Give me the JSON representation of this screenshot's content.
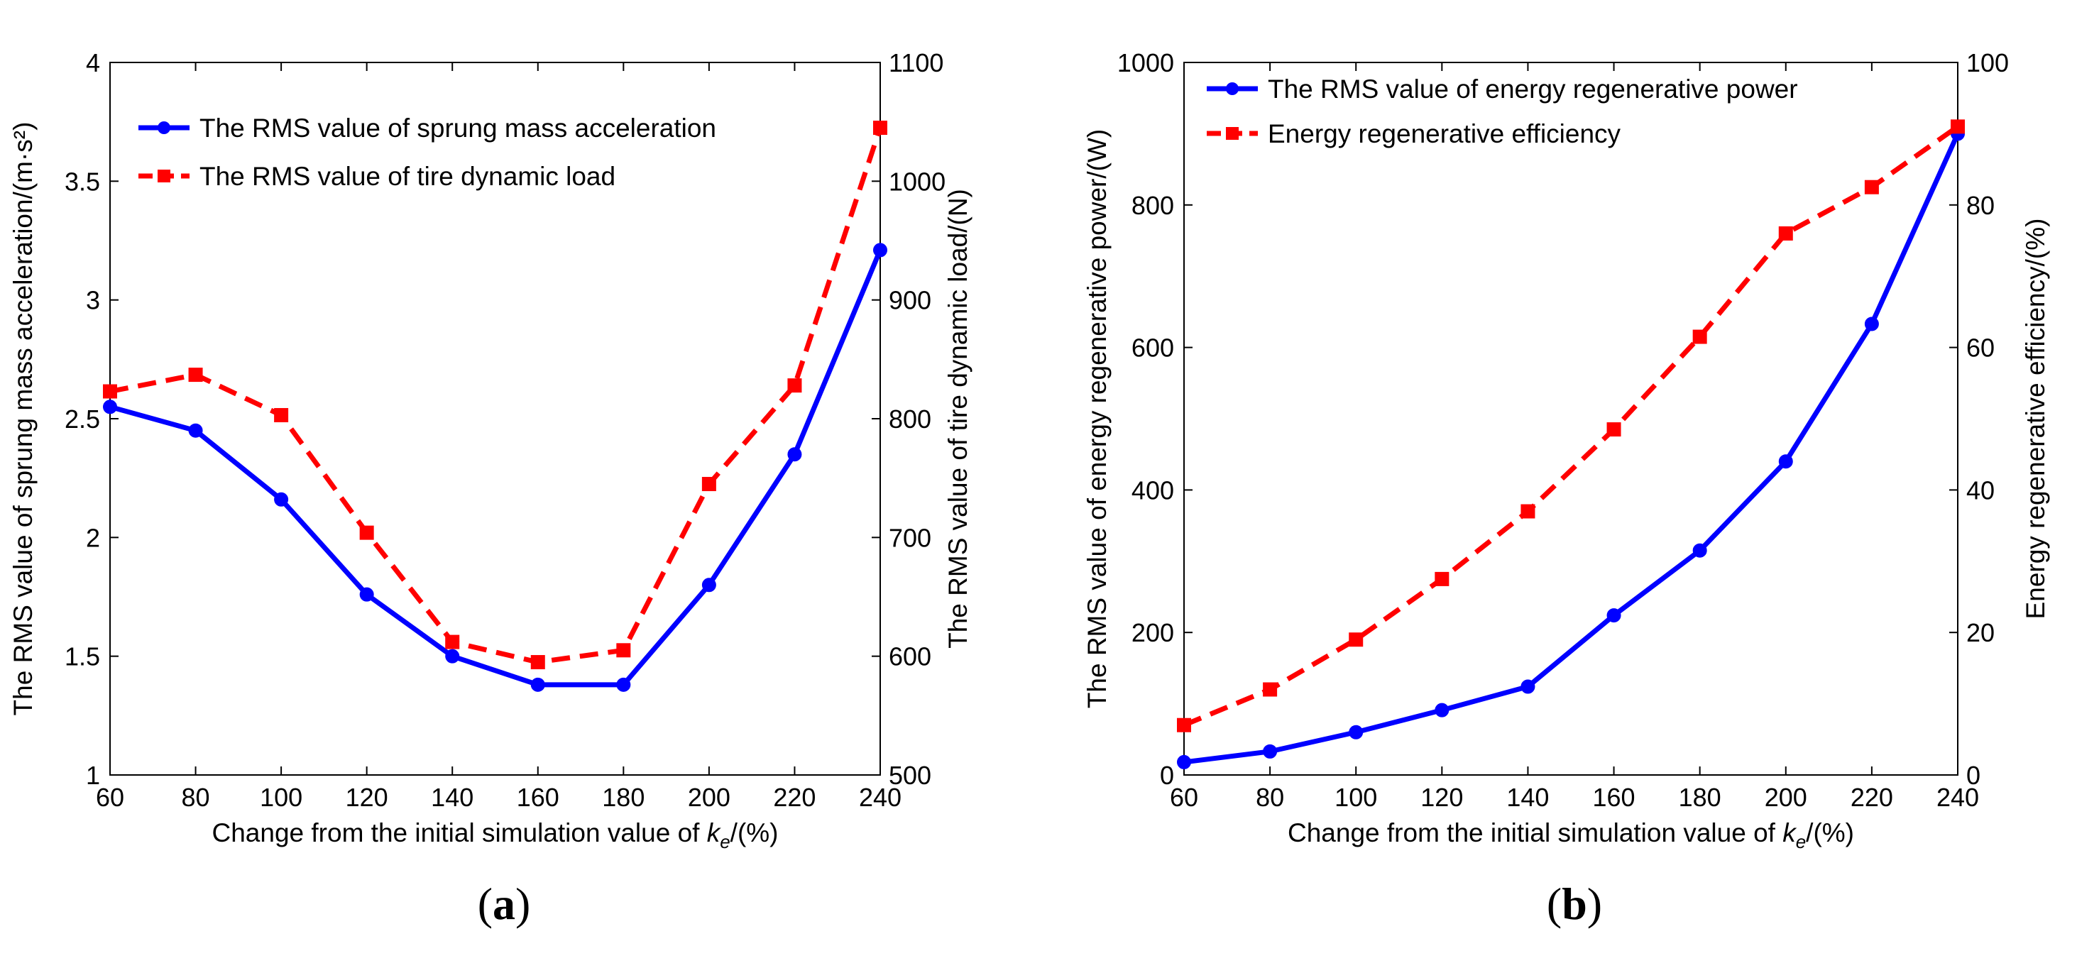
{
  "chart_data": [
    {
      "type": "line",
      "panel_label": "a",
      "x": [
        60,
        80,
        100,
        120,
        140,
        160,
        180,
        200,
        220,
        240
      ],
      "xlim": [
        60,
        240
      ],
      "xticks": [
        60,
        80,
        100,
        120,
        140,
        160,
        180,
        200,
        220,
        240
      ],
      "xlabel_prefix": "Change from the initial simulation value of ",
      "xlabel_var": "k",
      "xlabel_sub": "e",
      "xlabel_suffix": "/(%)",
      "ylabel_left": "The RMS value of sprung mass acceleration/(m·s²)",
      "ylabel_right": "The RMS value of tire dynamic load/(N)",
      "ylim_left": [
        1,
        4
      ],
      "yticks_left": [
        1,
        1.5,
        2,
        2.5,
        3,
        3.5,
        4
      ],
      "ylim_right": [
        500,
        1100
      ],
      "yticks_right": [
        500,
        600,
        700,
        800,
        900,
        1000,
        1100
      ],
      "legend_position": "top-left",
      "series": [
        {
          "name": "The RMS value of sprung mass acceleration",
          "axis": "left",
          "color": "#0000ff",
          "style": "solid",
          "marker": "circle",
          "values": [
            2.55,
            2.45,
            2.16,
            1.76,
            1.5,
            1.38,
            1.38,
            1.8,
            2.35,
            3.21
          ]
        },
        {
          "name": "The RMS value of tire dynamic load",
          "axis": "right",
          "color": "#ff0000",
          "style": "dashed",
          "marker": "square",
          "values": [
            823,
            837,
            803,
            704,
            612,
            595,
            605,
            745,
            828,
            1045
          ]
        }
      ]
    },
    {
      "type": "line",
      "panel_label": "b",
      "x": [
        60,
        80,
        100,
        120,
        140,
        160,
        180,
        200,
        220,
        240
      ],
      "xlim": [
        60,
        240
      ],
      "xticks": [
        60,
        80,
        100,
        120,
        140,
        160,
        180,
        200,
        220,
        240
      ],
      "xlabel_prefix": "Change from the initial simulation value of ",
      "xlabel_var": "k",
      "xlabel_sub": "e",
      "xlabel_suffix": "/(%)",
      "ylabel_left": "The RMS value of energy regenerative power/(W)",
      "ylabel_right": "Energy regenerative efficiency/(%)",
      "ylim_left": [
        0,
        1000
      ],
      "yticks_left": [
        0,
        200,
        400,
        600,
        800,
        1000
      ],
      "ylim_right": [
        0,
        100
      ],
      "yticks_right": [
        0,
        20,
        40,
        60,
        80,
        100
      ],
      "legend_position": "top-left",
      "series": [
        {
          "name": "The RMS value of energy regenerative power",
          "axis": "left",
          "color": "#0000ff",
          "style": "solid",
          "marker": "circle",
          "values": [
            18,
            33,
            60,
            91,
            124,
            224,
            315,
            440,
            633,
            900
          ]
        },
        {
          "name": "Energy regenerative efficiency",
          "axis": "right",
          "color": "#ff0000",
          "style": "dashed",
          "marker": "square",
          "values": [
            7,
            12,
            19,
            27.5,
            37,
            48.5,
            61.5,
            76,
            82.5,
            91
          ]
        }
      ]
    }
  ]
}
